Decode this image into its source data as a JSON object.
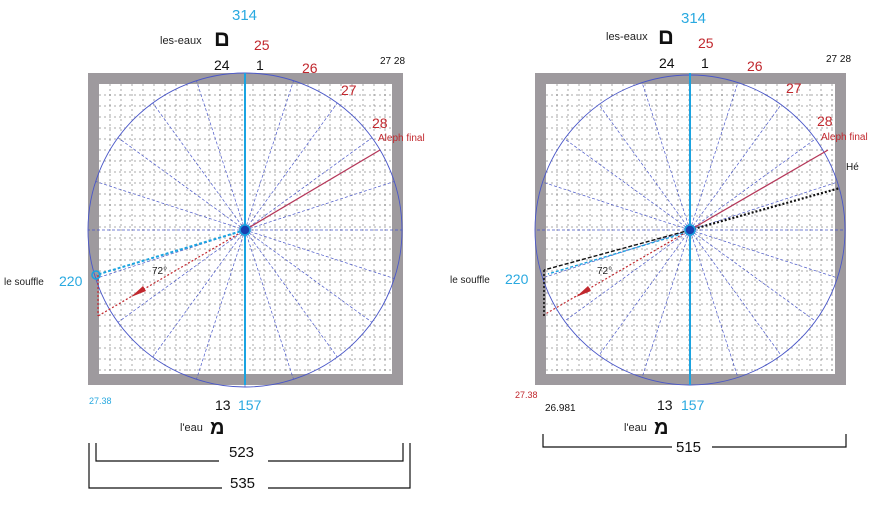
{
  "left": {
    "top_number_blue": "314",
    "label_les_eaux": "les-eaux",
    "hebrew_top": "ם",
    "num_25": "25",
    "num_24": "24",
    "num_1": "1",
    "num_26": "26",
    "num_27": "27",
    "num_28": "28",
    "num_27_28": "27 28",
    "aleph_final": "Aleph final",
    "le_souffle": "le souffle",
    "num_220": "220",
    "angle": "72°",
    "corner_left": "27.38",
    "num_13": "13",
    "num_157": "157",
    "label_leau": "l'eau",
    "hebrew_bottom": "מ",
    "dim_inner": "523",
    "dim_outer": "535"
  },
  "right": {
    "top_number_blue": "314",
    "label_les_eaux": "les-eaux",
    "hebrew_top": "ם",
    "num_25": "25",
    "num_24": "24",
    "num_1": "1",
    "num_26": "26",
    "num_27": "27",
    "num_28": "28",
    "num_27_28": "27 28",
    "aleph_final": "Aleph final",
    "he_label": "Hé",
    "le_souffle": "le souffle",
    "num_220": "220",
    "angle": "72°",
    "corner_left": "27.38",
    "corner_value": "26.981",
    "num_13": "13",
    "num_157": "157",
    "label_leau": "l'eau",
    "hebrew_bottom": "מ",
    "dim": "515"
  },
  "colors": {
    "blue_text": "#29a9e0",
    "red_text": "#c1272d",
    "grid_blue": "#4a57c8",
    "frame_gray": "#9e9a9e",
    "axis_blue": "#1aa3e0",
    "aleph_line": "#b5385a"
  }
}
